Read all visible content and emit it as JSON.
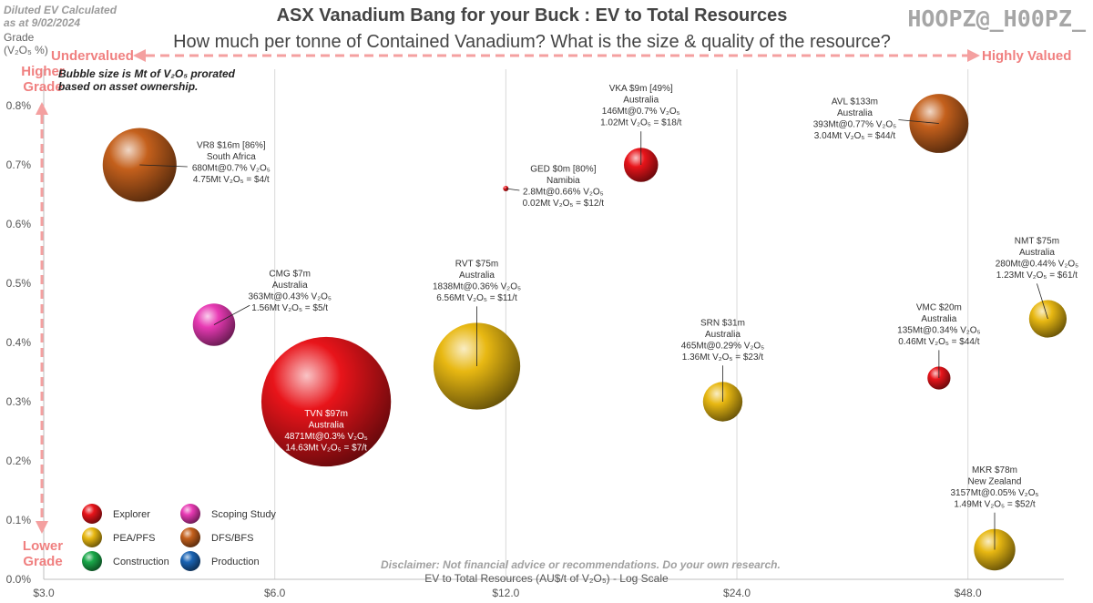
{
  "header": {
    "note_line1": "Diluted EV Calculated",
    "note_line2": "as at 9/02/2024",
    "title": "ASX Vanadium Bang for your Buck : EV to Total Resources",
    "subtitle": "How much per tonne of Contained Vanadium? What is the size & quality of the resource?",
    "handle": "HOOPZ@_H00PZ_"
  },
  "annotations": {
    "undervalued": "Undervalued",
    "highly_valued": "Highly Valued",
    "higher": "Higher",
    "grade_top": "Grade",
    "lower": "Lower",
    "grade_bottom": "Grade",
    "bubble_note_line1": "Bubble size is Mt of V₂O₅ prorated",
    "bubble_note_line2": "based on asset ownership.",
    "disclaimer": "Disclaimer: Not financial advice or recommendations. Do your own research."
  },
  "colors": {
    "explorer": "#e8141a",
    "scoping": "#e83ab4",
    "pea": "#e8b812",
    "dfs": "#c4601c",
    "construction": "#1aa84a",
    "production": "#1a64b4",
    "arrow": "#f4a0a0"
  },
  "legend": [
    {
      "label": "Explorer",
      "stage": "explorer"
    },
    {
      "label": "Scoping Study",
      "stage": "scoping"
    },
    {
      "label": "PEA/PFS",
      "stage": "pea"
    },
    {
      "label": "DFS/BFS",
      "stage": "dfs"
    },
    {
      "label": "Construction",
      "stage": "construction"
    },
    {
      "label": "Production",
      "stage": "production"
    }
  ],
  "chart_data": {
    "type": "scatter",
    "xlabel": "EV to Total Resources (AU$/t of V₂O₅) - Log Scale",
    "ylabel_line1": "Grade",
    "ylabel_line2": "(V₂O₅ %)",
    "x_scale": "log",
    "xlim": [
      3,
      64
    ],
    "ylim": [
      0,
      0.8
    ],
    "x_ticks": [
      3,
      6,
      12,
      24,
      48
    ],
    "x_tick_labels": [
      "$3.0",
      "$6.0",
      "$12.0",
      "$24.0",
      "$48.0"
    ],
    "y_ticks": [
      0,
      0.1,
      0.2,
      0.3,
      0.4,
      0.5,
      0.6,
      0.7,
      0.8
    ],
    "y_tick_labels": [
      "0.0%",
      "0.1%",
      "0.2%",
      "0.3%",
      "0.4%",
      "0.5%",
      "0.6%",
      "0.7%",
      "0.8%"
    ],
    "grid": "vertical",
    "points": [
      {
        "name": "VR8",
        "x": 4,
        "y": 0.7,
        "size": 4.75,
        "stage": "dfs",
        "label_pos": "right",
        "lines": [
          "VR8 $16m [86%]",
          "South Africa",
          "680Mt@0.7% V₂O₅",
          "4.75Mt V₂O₅ =  $4/t"
        ]
      },
      {
        "name": "CMG",
        "x": 5,
        "y": 0.43,
        "size": 1.56,
        "stage": "scoping",
        "label_pos": "upright",
        "lines": [
          "CMG $7m",
          "Australia",
          "363Mt@0.43% V₂O₅",
          "1.56Mt V₂O₅ =  $5/t"
        ]
      },
      {
        "name": "TVN",
        "x": 7,
        "y": 0.3,
        "size": 14.63,
        "stage": "explorer",
        "label_pos": "inside",
        "lines": [
          "TVN $97m",
          "Australia",
          "4871Mt@0.3% V₂O₅",
          "14.63Mt V₂O₅ = $7/t"
        ]
      },
      {
        "name": "GED",
        "x": 12,
        "y": 0.66,
        "size": 0.02,
        "stage": "explorer",
        "label_pos": "right",
        "lines": [
          "GED $0m [80%]",
          "Namibia",
          "2.8Mt@0.66% V₂O₅",
          "0.02Mt V₂O₅ =  $12/t"
        ]
      },
      {
        "name": "RVT",
        "x": 11,
        "y": 0.36,
        "size": 6.56,
        "stage": "pea",
        "label_pos": "above",
        "lines": [
          "RVT $75m",
          "Australia",
          "1838Mt@0.36% V₂O₅",
          "6.56Mt V₂O₅ =  $11/t"
        ]
      },
      {
        "name": "VKA",
        "x": 18,
        "y": 0.7,
        "size": 1.02,
        "stage": "explorer",
        "label_pos": "above",
        "lines": [
          "VKA $9m [49%]",
          "Australia",
          "146Mt@0.7% V₂O₅",
          "1.02Mt V₂O₅ =  $18/t"
        ]
      },
      {
        "name": "SRN",
        "x": 23,
        "y": 0.3,
        "size": 1.36,
        "stage": "pea",
        "label_pos": "above",
        "lines": [
          "SRN $31m",
          "Australia",
          "465Mt@0.29% V₂O₅",
          "1.36Mt V₂O₅ =  $23/t"
        ]
      },
      {
        "name": "AVL",
        "x": 44,
        "y": 0.77,
        "size": 3.04,
        "stage": "dfs",
        "label_pos": "left",
        "lines": [
          "AVL $133m",
          "Australia",
          "393Mt@0.77% V₂O₅",
          "3.04Mt V₂O₅ =  $44/t"
        ]
      },
      {
        "name": "VMC",
        "x": 44,
        "y": 0.34,
        "size": 0.46,
        "stage": "explorer",
        "label_pos": "above",
        "lines": [
          "VMC $20m",
          "Australia",
          "135Mt@0.34% V₂O₅",
          "0.46Mt V₂O₅ =  $44/t"
        ]
      },
      {
        "name": "NMT",
        "x": 61,
        "y": 0.44,
        "size": 1.23,
        "stage": "pea",
        "label_pos": "above",
        "lines": [
          "NMT $75m",
          "Australia",
          "280Mt@0.44% V₂O₅",
          "1.23Mt V₂O₅ =  $61/t"
        ]
      },
      {
        "name": "MKR",
        "x": 52,
        "y": 0.05,
        "size": 1.49,
        "stage": "pea",
        "label_pos": "above",
        "lines": [
          "MKR $78m",
          "New Zealand",
          "3157Mt@0.05% V₂O₅",
          "1.49Mt V₂O₅ =  $52/t"
        ]
      }
    ]
  }
}
